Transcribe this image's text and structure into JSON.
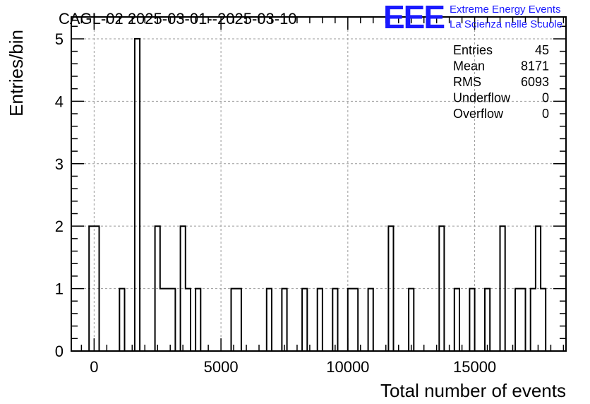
{
  "chart_data": {
    "type": "bar",
    "title": "CAGL-02 2025-03-01--2025-03-10",
    "xlabel": "Total number of events",
    "ylabel": "Entries/bin",
    "xlim": [
      -900,
      18600
    ],
    "ylim": [
      0,
      5.35
    ],
    "x_ticks": [
      0,
      5000,
      10000,
      15000
    ],
    "y_ticks": [
      0,
      1,
      2,
      3,
      4,
      5
    ],
    "bin_width": 200,
    "grid": true,
    "legend": "none",
    "bins": [
      {
        "x": -100,
        "value": 2
      },
      {
        "x": 100,
        "value": 2
      },
      {
        "x": 1100,
        "value": 1
      },
      {
        "x": 1700,
        "value": 5
      },
      {
        "x": 2500,
        "value": 2
      },
      {
        "x": 2700,
        "value": 1
      },
      {
        "x": 2900,
        "value": 1
      },
      {
        "x": 3100,
        "value": 1
      },
      {
        "x": 3500,
        "value": 2
      },
      {
        "x": 3700,
        "value": 1
      },
      {
        "x": 4100,
        "value": 1
      },
      {
        "x": 5500,
        "value": 1
      },
      {
        "x": 5700,
        "value": 1
      },
      {
        "x": 6900,
        "value": 1
      },
      {
        "x": 7500,
        "value": 1
      },
      {
        "x": 8300,
        "value": 1
      },
      {
        "x": 8900,
        "value": 1
      },
      {
        "x": 9500,
        "value": 1
      },
      {
        "x": 10100,
        "value": 1
      },
      {
        "x": 10300,
        "value": 1
      },
      {
        "x": 10900,
        "value": 1
      },
      {
        "x": 11700,
        "value": 2
      },
      {
        "x": 12500,
        "value": 1
      },
      {
        "x": 13700,
        "value": 2
      },
      {
        "x": 14300,
        "value": 1
      },
      {
        "x": 14900,
        "value": 1
      },
      {
        "x": 15500,
        "value": 1
      },
      {
        "x": 16100,
        "value": 2
      },
      {
        "x": 16700,
        "value": 1
      },
      {
        "x": 16900,
        "value": 1
      },
      {
        "x": 17300,
        "value": 1
      },
      {
        "x": 17500,
        "value": 2
      },
      {
        "x": 17700,
        "value": 1
      }
    ]
  },
  "stats": [
    {
      "label": "Entries",
      "value": "45"
    },
    {
      "label": "Mean",
      "value": "8171"
    },
    {
      "label": "RMS",
      "value": "6093"
    },
    {
      "label": "Underflow",
      "value": "0"
    },
    {
      "label": "Overflow",
      "value": "0"
    }
  ],
  "logo": {
    "text": "EEE",
    "line1": "Extreme Energy Events",
    "line2": "La Scienza nelle Scuole",
    "color": "#1a1aff"
  },
  "colors": {
    "histogram": "#000000",
    "grid": "#9a9a9a"
  }
}
